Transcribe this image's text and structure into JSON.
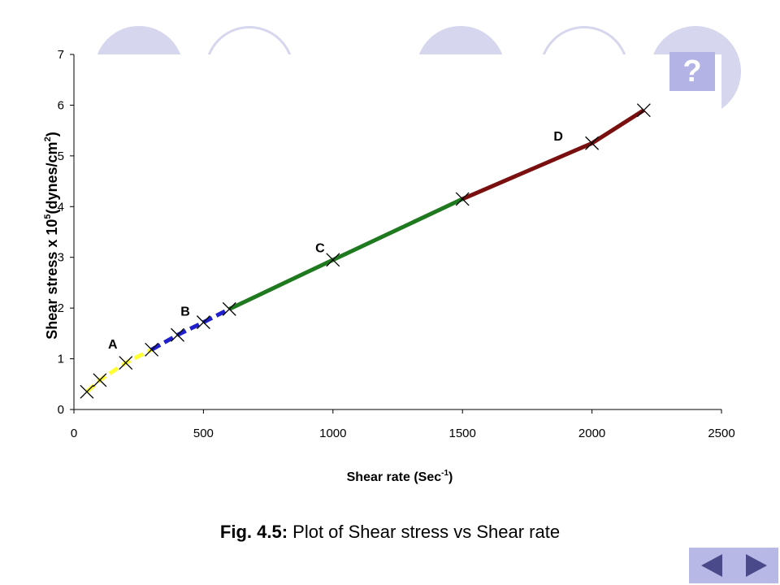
{
  "help": {
    "label": "?"
  },
  "caption": {
    "fig": "Fig. 4.5:",
    "text": " Plot of Shear stress vs Shear rate"
  },
  "colors": {
    "decor": "#d6d6ee",
    "help_bg": "#b3b3e6",
    "nav_bg": "#b8b8e6",
    "nav_arrow": "#4a4a8a"
  },
  "nav": {
    "prev_icon": "triangle-left-icon",
    "next_icon": "triangle-right-icon"
  },
  "chart_data": {
    "type": "line",
    "title": "",
    "xlabel": "Shear rate (Sec",
    "xlabel_sup": "-1",
    "xlabel_end": ")",
    "ylabel": "Shear stress x 10",
    "ylabel_sup": "5",
    "ylabel_mid": "(dynes/cm",
    "ylabel_sup2": "2",
    "ylabel_end": ")",
    "xlim": [
      0,
      2500
    ],
    "ylim": [
      0,
      7
    ],
    "xticks": [
      0,
      500,
      1000,
      1500,
      2000,
      2500
    ],
    "yticks": [
      0,
      1,
      2,
      3,
      4,
      5,
      6,
      7
    ],
    "series": [
      {
        "name": "A",
        "color": "#ffff33",
        "dash": true,
        "points": [
          [
            50,
            0.35
          ],
          [
            100,
            0.58
          ],
          [
            200,
            0.92
          ],
          [
            300,
            1.18
          ]
        ]
      },
      {
        "name": "B",
        "color": "#1f1fcc",
        "dash": true,
        "points": [
          [
            300,
            1.18
          ],
          [
            400,
            1.47
          ],
          [
            500,
            1.72
          ],
          [
            600,
            1.98
          ]
        ]
      },
      {
        "name": "C",
        "color": "#1f7a1f",
        "dash": false,
        "points": [
          [
            600,
            1.98
          ],
          [
            1000,
            2.95
          ],
          [
            1500,
            4.15
          ]
        ]
      },
      {
        "name": "D",
        "color": "#7a0f0f",
        "dash": false,
        "points": [
          [
            1500,
            4.15
          ],
          [
            2000,
            5.25
          ],
          [
            2200,
            5.9
          ]
        ]
      }
    ],
    "markers": [
      [
        50,
        0.35
      ],
      [
        100,
        0.58
      ],
      [
        200,
        0.92
      ],
      [
        300,
        1.18
      ],
      [
        400,
        1.47
      ],
      [
        500,
        1.72
      ],
      [
        600,
        1.98
      ],
      [
        1000,
        2.95
      ],
      [
        1500,
        4.15
      ],
      [
        2000,
        5.25
      ],
      [
        2200,
        5.9
      ]
    ],
    "annotations": [
      {
        "text": "A",
        "x": 150,
        "y": 1.2
      },
      {
        "text": "B",
        "x": 430,
        "y": 1.85
      },
      {
        "text": "C",
        "x": 950,
        "y": 3.1
      },
      {
        "text": "D",
        "x": 1870,
        "y": 5.3
      }
    ]
  }
}
